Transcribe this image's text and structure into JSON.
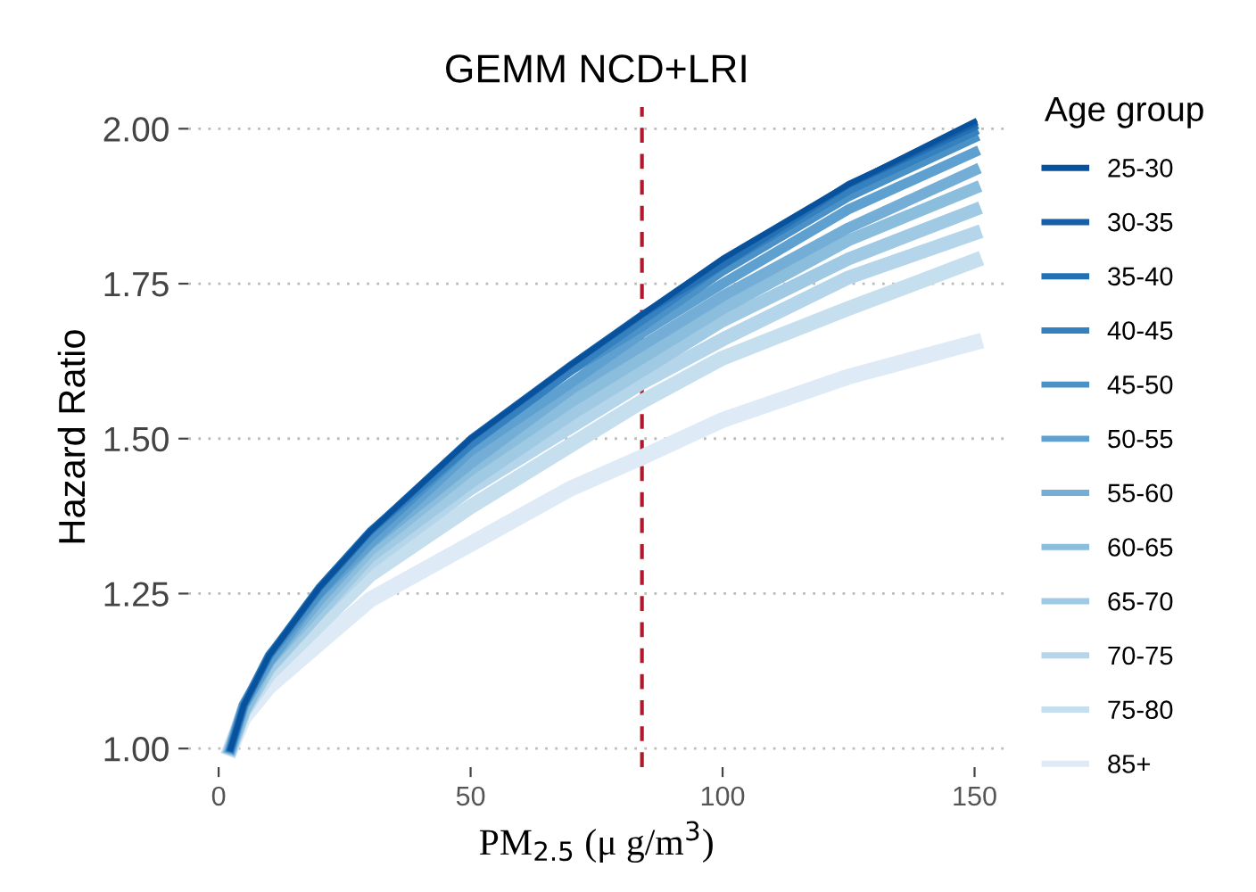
{
  "chart_data": {
    "type": "line",
    "title": "GEMM NCD+LRI",
    "xlabel": "PM$_{2.5}$ (μ g/m$^{3}$)",
    "ylabel": "Hazard Ratio",
    "legend_title": "Age group",
    "legend": "right",
    "grid": "y",
    "line_style": "solid",
    "marker": "none",
    "x": [
      2.4,
      5,
      10,
      20,
      30,
      50,
      70,
      84,
      100,
      125,
      150
    ],
    "xlim": [
      -6,
      156
    ],
    "xticks": [
      0,
      50,
      100,
      150
    ],
    "ylim": [
      0.97,
      2.035
    ],
    "yticks": [
      {
        "value": 1.0,
        "label": "1.00"
      },
      {
        "value": 1.25,
        "label": "1.25"
      },
      {
        "value": 1.5,
        "label": "1.50"
      },
      {
        "value": 1.75,
        "label": "1.75"
      },
      {
        "value": 2.0,
        "label": "2.00"
      }
    ],
    "ref_lines": [
      {
        "axis": "x",
        "value": 84,
        "color": "#b2182b",
        "line_style": "dashed"
      }
    ],
    "series": [
      {
        "name": "25-30",
        "color": "#08519c",
        "values": [
          1,
          1.07,
          1.15,
          1.26,
          1.35,
          1.5,
          1.62,
          1.7,
          1.79,
          1.91,
          2.012
        ]
      },
      {
        "name": "30-35",
        "color": "#175fa7",
        "values": [
          1,
          1.07,
          1.15,
          1.26,
          1.35,
          1.5,
          1.62,
          1.7,
          1.79,
          1.91,
          2.008
        ]
      },
      {
        "name": "35-40",
        "color": "#2470b4",
        "values": [
          1,
          1.07,
          1.15,
          1.26,
          1.35,
          1.5,
          1.62,
          1.7,
          1.78,
          1.91,
          2.003
        ]
      },
      {
        "name": "40-45",
        "color": "#3580be",
        "values": [
          1,
          1.07,
          1.15,
          1.26,
          1.35,
          1.49,
          1.61,
          1.69,
          1.78,
          1.9,
          1.995
        ]
      },
      {
        "name": "45-50",
        "color": "#4a91c8",
        "values": [
          1,
          1.07,
          1.15,
          1.25,
          1.34,
          1.49,
          1.61,
          1.68,
          1.77,
          1.89,
          1.985
        ]
      },
      {
        "name": "50-55",
        "color": "#5ea0d0",
        "values": [
          1,
          1.07,
          1.14,
          1.25,
          1.33,
          1.48,
          1.59,
          1.67,
          1.75,
          1.87,
          1.962
        ]
      },
      {
        "name": "55-60",
        "color": "#74aed7",
        "values": [
          1,
          1.07,
          1.14,
          1.24,
          1.33,
          1.46,
          1.58,
          1.65,
          1.73,
          1.84,
          1.933
        ]
      },
      {
        "name": "60-65",
        "color": "#8bbddd",
        "values": [
          1,
          1.06,
          1.14,
          1.23,
          1.32,
          1.45,
          1.56,
          1.63,
          1.71,
          1.82,
          1.904
        ]
      },
      {
        "name": "65-70",
        "color": "#a0cae3",
        "values": [
          1,
          1.06,
          1.13,
          1.22,
          1.31,
          1.43,
          1.54,
          1.61,
          1.69,
          1.79,
          1.869
        ]
      },
      {
        "name": "70-75",
        "color": "#b4d5ea",
        "values": [
          1,
          1.06,
          1.13,
          1.22,
          1.3,
          1.42,
          1.52,
          1.59,
          1.66,
          1.76,
          1.831
        ]
      },
      {
        "name": "75-80",
        "color": "#c6dfef",
        "values": [
          1,
          1.06,
          1.12,
          1.2,
          1.28,
          1.39,
          1.49,
          1.56,
          1.63,
          1.71,
          1.787
        ]
      },
      {
        "name": "85+",
        "color": "#deebf7",
        "values": [
          1,
          1.05,
          1.1,
          1.17,
          1.24,
          1.33,
          1.42,
          1.47,
          1.53,
          1.6,
          1.655
        ]
      }
    ]
  }
}
